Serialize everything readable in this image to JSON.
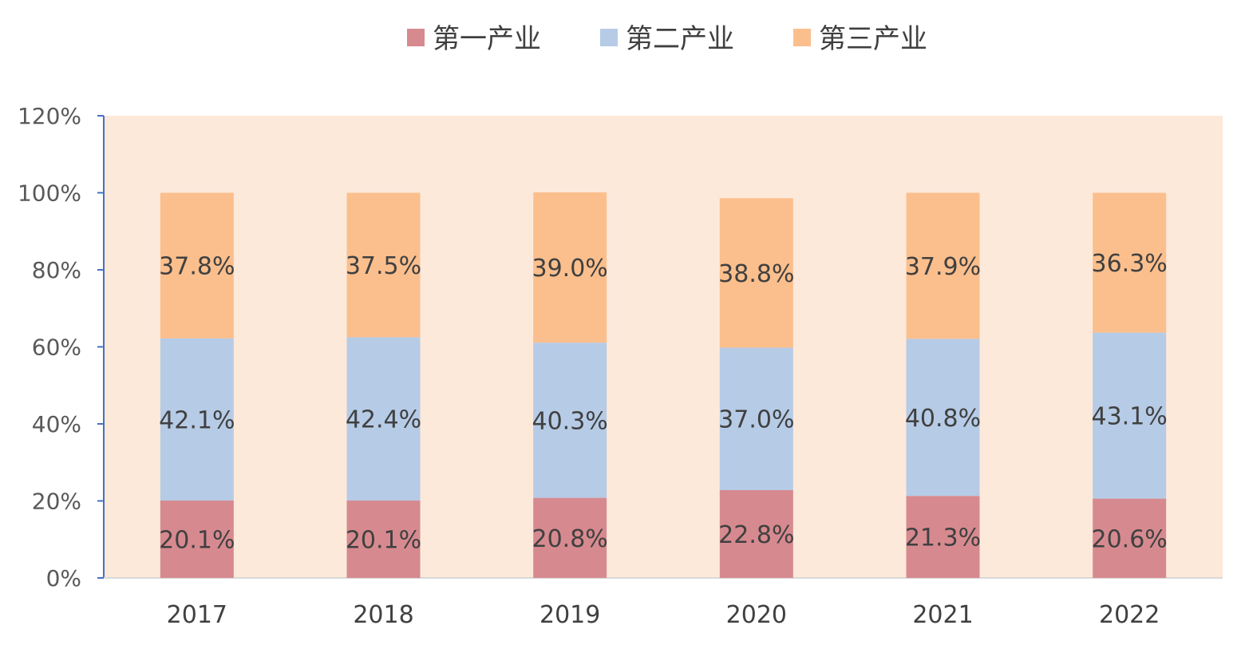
{
  "chart_data": {
    "type": "bar",
    "stacked": true,
    "categories": [
      "2017",
      "2018",
      "2019",
      "2020",
      "2021",
      "2022"
    ],
    "series": [
      {
        "name": "第一产业",
        "values": [
          20.1,
          20.1,
          20.8,
          22.8,
          21.3,
          20.6
        ],
        "color": "#d68a8f"
      },
      {
        "name": "第二产业",
        "values": [
          42.1,
          42.4,
          40.3,
          37.0,
          40.8,
          43.1
        ],
        "color": "#b6cbe6"
      },
      {
        "name": "第三产业",
        "values": [
          37.8,
          37.5,
          39.0,
          38.8,
          37.9,
          36.3
        ],
        "color": "#fbbf8d"
      }
    ],
    "data_labels": [
      [
        "20.1%",
        "20.1%",
        "20.8%",
        "22.8%",
        "21.3%",
        "20.6%"
      ],
      [
        "42.1%",
        "42.4%",
        "40.3%",
        "37.0%",
        "40.8%",
        "43.1%"
      ],
      [
        "37.8%",
        "37.5%",
        "39.0%",
        "38.8%",
        "37.9%",
        "36.3%"
      ]
    ],
    "y_ticks": [
      "0%",
      "20%",
      "40%",
      "60%",
      "80%",
      "100%",
      "120%"
    ],
    "ylim": [
      0,
      120
    ],
    "legend_position": "top",
    "grid": false,
    "plot_background": "#fde9da",
    "axis_color": "#4472c4"
  }
}
